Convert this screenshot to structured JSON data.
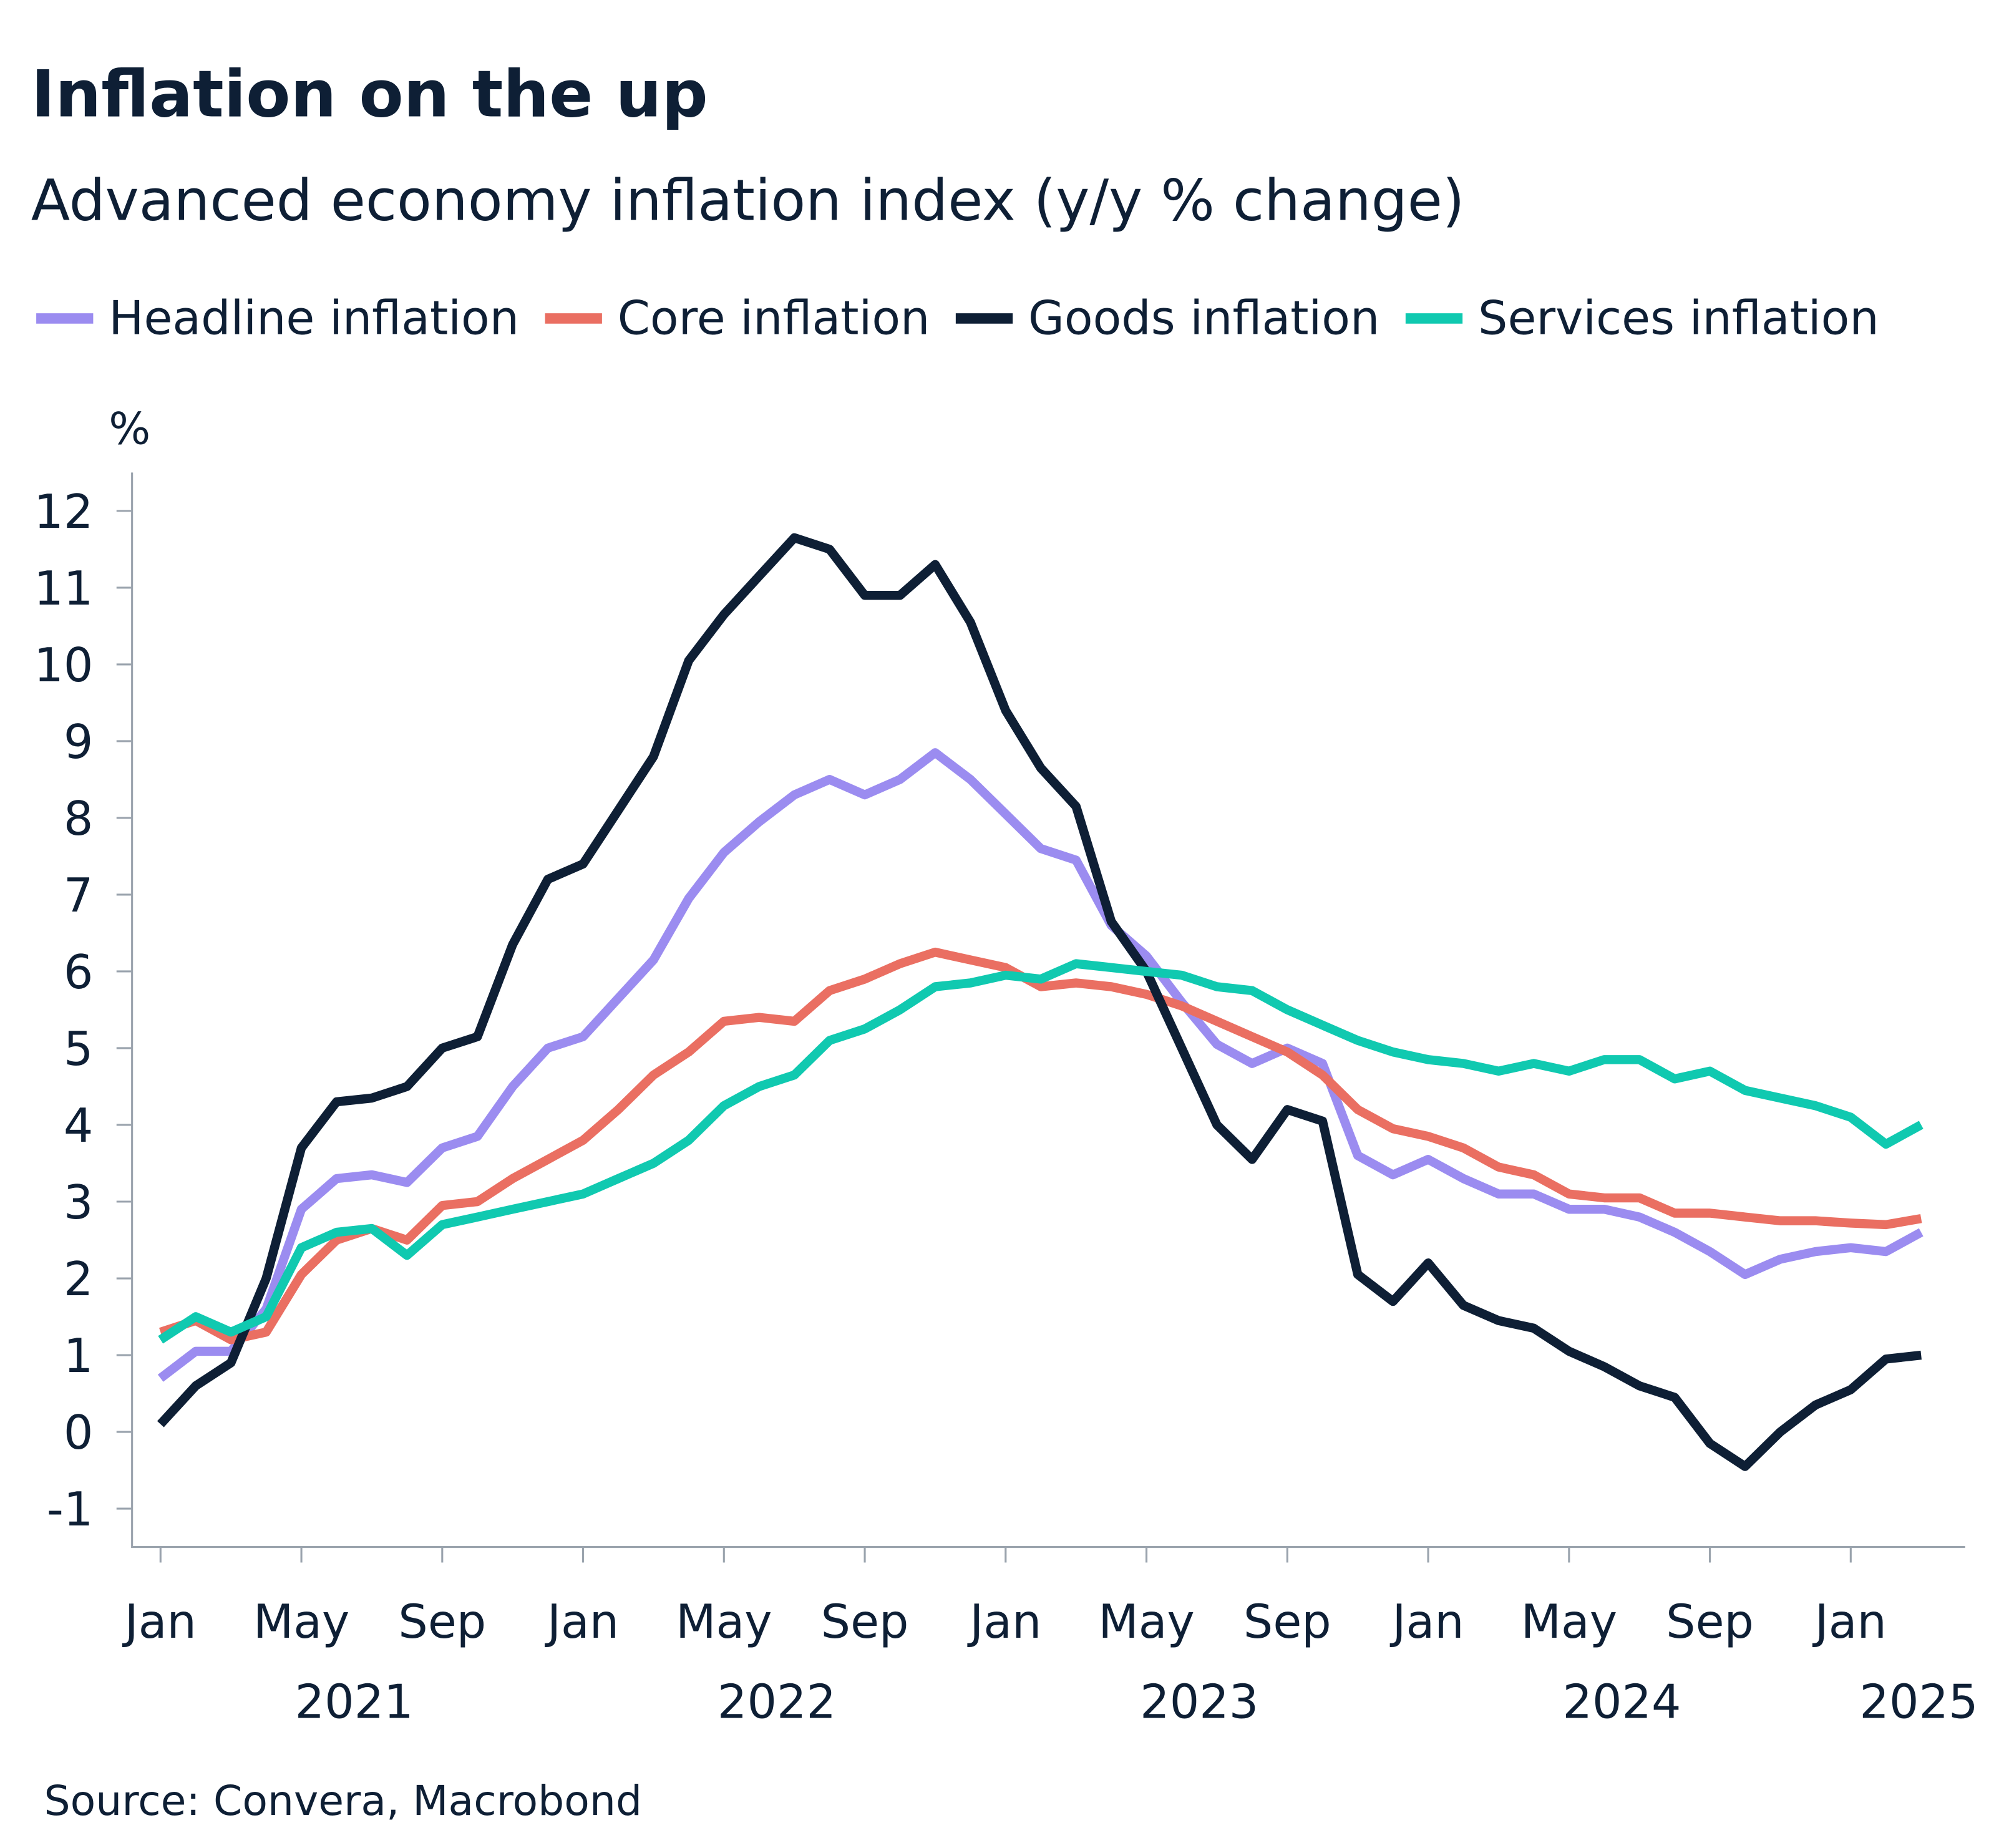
{
  "chart_data": {
    "type": "line",
    "title": "Inflation on the up",
    "subtitle": "Advanced economy inflation index (y/y % change)",
    "y_unit": "%",
    "source": "Source: Convera, Macrobond",
    "categories": [
      "Jan",
      null,
      null,
      null,
      "May",
      null,
      null,
      null,
      "Sep",
      null,
      null,
      null,
      "Jan",
      null,
      null,
      null,
      "May",
      null,
      null,
      null,
      "Sep",
      null,
      null,
      null,
      "Jan",
      null,
      null,
      null,
      "May",
      null,
      null,
      null,
      "Sep",
      null,
      null,
      null,
      "Jan",
      null,
      null,
      null,
      "May",
      null,
      null,
      null,
      "Sep",
      null,
      null,
      null,
      "Jan",
      null,
      null
    ],
    "year_labels": [
      "2021",
      "2022",
      "2023",
      "2024",
      "2025"
    ],
    "ylim": [
      -1.5,
      12.5
    ],
    "yticks": [
      -1,
      0,
      1,
      2,
      3,
      4,
      5,
      6,
      7,
      8,
      9,
      10,
      11,
      12
    ],
    "grid": false,
    "legend": "top",
    "series": [
      {
        "name": "Headline inflation",
        "color": "#9b8cf0",
        "values": [
          0.7,
          1.05,
          1.05,
          1.6,
          2.9,
          3.3,
          3.35,
          3.25,
          3.7,
          3.85,
          4.5,
          5.0,
          5.15,
          5.65,
          6.15,
          6.95,
          7.55,
          7.95,
          8.3,
          8.5,
          8.3,
          8.5,
          8.85,
          8.5,
          8.05,
          7.6,
          7.45,
          6.6,
          6.2,
          5.6,
          5.05,
          4.8,
          5.0,
          4.8,
          3.6,
          3.35,
          3.55,
          3.3,
          3.1,
          3.1,
          2.9,
          2.9,
          2.8,
          2.6,
          2.35,
          2.05,
          2.25,
          2.35,
          2.4,
          2.35,
          2.6
        ]
      },
      {
        "name": "Core inflation",
        "color": "#ea6f62",
        "values": [
          1.3,
          1.45,
          1.2,
          1.3,
          2.05,
          2.5,
          2.65,
          2.5,
          2.95,
          3.0,
          3.3,
          3.55,
          3.8,
          4.2,
          4.65,
          4.95,
          5.35,
          5.4,
          5.35,
          5.75,
          5.9,
          6.1,
          6.25,
          6.15,
          6.05,
          5.8,
          5.85,
          5.8,
          5.7,
          5.55,
          5.35,
          5.15,
          4.95,
          4.65,
          4.2,
          3.95,
          3.85,
          3.7,
          3.45,
          3.35,
          3.1,
          3.05,
          3.05,
          2.85,
          2.85,
          2.8,
          2.75,
          2.75,
          2.72,
          2.7,
          2.78
        ]
      },
      {
        "name": "Goods inflation",
        "color": "#0e1f35",
        "values": [
          0.1,
          0.6,
          0.9,
          2.0,
          3.7,
          4.3,
          4.35,
          4.5,
          5.0,
          5.15,
          6.35,
          7.2,
          7.4,
          8.1,
          8.8,
          10.05,
          10.65,
          11.15,
          11.65,
          11.5,
          10.9,
          10.9,
          11.3,
          10.55,
          9.4,
          8.65,
          8.15,
          6.65,
          6.0,
          5.0,
          4.0,
          3.55,
          4.2,
          4.05,
          2.05,
          1.7,
          2.2,
          1.65,
          1.45,
          1.35,
          1.05,
          0.85,
          0.6,
          0.45,
          -0.15,
          -0.45,
          0.0,
          0.35,
          0.55,
          0.95,
          1.0
        ]
      },
      {
        "name": "Services inflation",
        "color": "#10c9b0",
        "values": [
          1.2,
          1.5,
          1.3,
          1.5,
          2.4,
          2.6,
          2.65,
          2.3,
          2.7,
          2.8,
          2.9,
          3.0,
          3.1,
          3.3,
          3.5,
          3.8,
          4.25,
          4.5,
          4.65,
          5.1,
          5.25,
          5.5,
          5.8,
          5.85,
          5.95,
          5.9,
          6.1,
          6.05,
          6.0,
          5.95,
          5.8,
          5.75,
          5.5,
          5.3,
          5.1,
          4.95,
          4.85,
          4.8,
          4.7,
          4.8,
          4.7,
          4.85,
          4.85,
          4.6,
          4.7,
          4.45,
          4.35,
          4.25,
          4.1,
          3.75,
          4.0
        ]
      }
    ]
  }
}
